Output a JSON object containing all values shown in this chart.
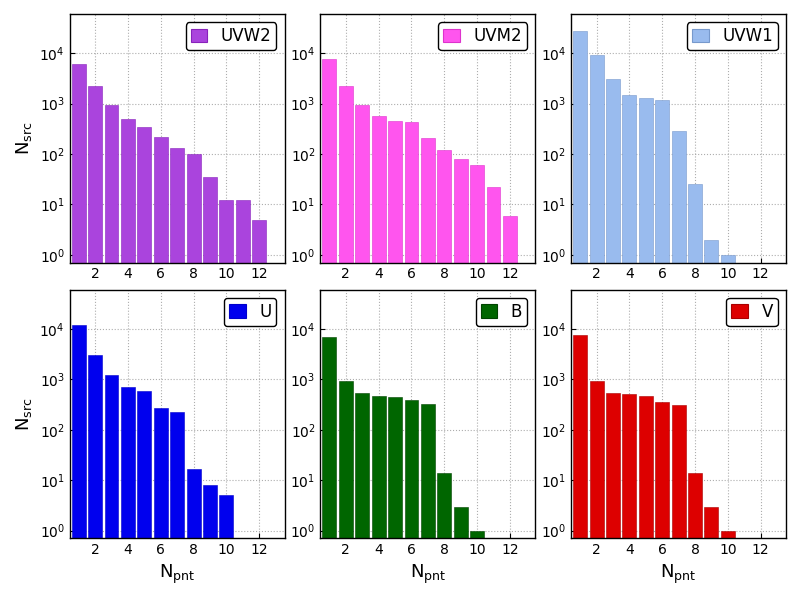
{
  "panels": [
    {
      "label": "UVW2",
      "color": "#AA44DD",
      "ec": "#8822BB",
      "x": [
        1,
        2,
        3,
        4,
        5,
        6,
        7,
        8,
        9,
        10,
        11,
        12
      ],
      "y": [
        6000,
        2200,
        950,
        500,
        340,
        220,
        130,
        100,
        35,
        12,
        12,
        5
      ]
    },
    {
      "label": "UVM2",
      "color": "#FF55EE",
      "ec": "#DD33CC",
      "x": [
        1,
        2,
        3,
        4,
        5,
        6,
        7,
        8,
        9,
        10,
        11,
        12
      ],
      "y": [
        7500,
        2200,
        950,
        570,
        460,
        430,
        210,
        120,
        80,
        60,
        22,
        6
      ]
    },
    {
      "label": "UVW1",
      "color": "#99BBEE",
      "ec": "#7799CC",
      "x": [
        1,
        2,
        3,
        4,
        5,
        6,
        7,
        8,
        9,
        10
      ],
      "y": [
        28000,
        9000,
        3000,
        1500,
        1300,
        1200,
        290,
        25,
        2,
        1
      ]
    },
    {
      "label": "U",
      "color": "#0000EE",
      "ec": "#0000CC",
      "x": [
        1,
        2,
        3,
        4,
        5,
        6,
        7,
        8,
        9,
        10
      ],
      "y": [
        12000,
        3000,
        1200,
        700,
        580,
        270,
        230,
        17,
        8,
        5
      ]
    },
    {
      "label": "B",
      "color": "#006600",
      "ec": "#004400",
      "x": [
        1,
        2,
        3,
        4,
        5,
        6,
        7,
        8,
        9,
        10
      ],
      "y": [
        7000,
        950,
        550,
        480,
        440,
        390,
        330,
        14,
        3,
        1
      ]
    },
    {
      "label": "V",
      "color": "#DD0000",
      "ec": "#AA0000",
      "x": [
        1,
        2,
        3,
        4,
        5,
        6,
        7,
        8,
        9,
        10
      ],
      "y": [
        7500,
        950,
        540,
        510,
        480,
        360,
        310,
        14,
        3,
        1
      ]
    }
  ],
  "ylim": [
    0.7,
    60000
  ],
  "xlim": [
    0.45,
    13.55
  ],
  "xticks": [
    2,
    4,
    6,
    8,
    10,
    12
  ],
  "yticks": [
    1,
    10,
    100,
    1000,
    10000
  ],
  "ytick_labels": [
    "10$^0$",
    "10$^1$",
    "10$^2$",
    "10$^3$",
    "10$^4$"
  ],
  "ylabel": "N$_{src}$",
  "xlabel": "N$_{pnt}$",
  "grid_color": "#999999",
  "bg_color": "#FFFFFF",
  "label_fontsize": 13,
  "tick_fontsize": 10,
  "legend_fontsize": 12
}
